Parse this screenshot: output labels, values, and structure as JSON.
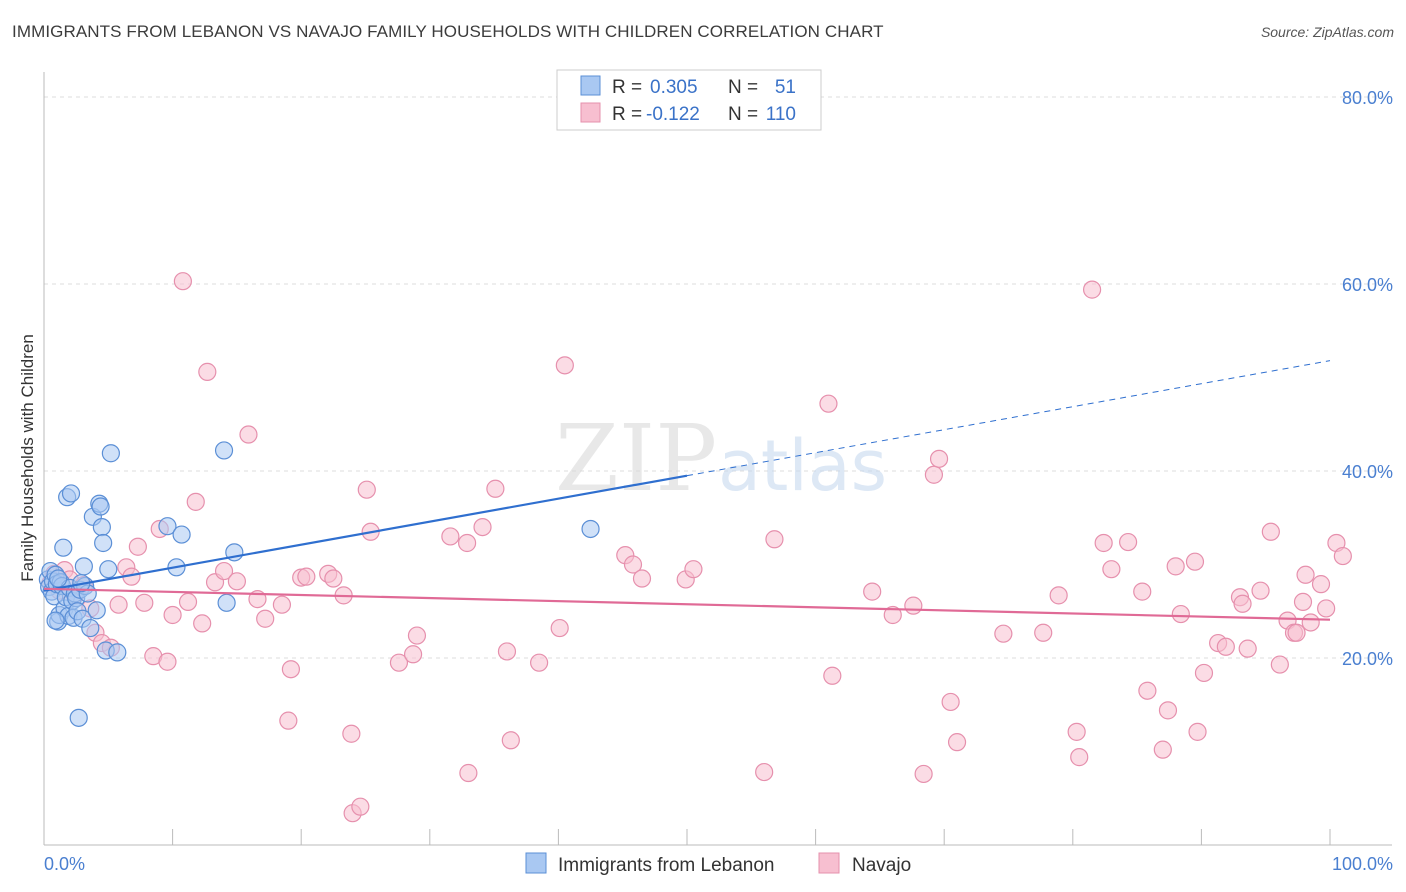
{
  "title": "IMMIGRANTS FROM LEBANON VS NAVAJO FAMILY HOUSEHOLDS WITH CHILDREN CORRELATION CHART",
  "source": "Source: ZipAtlas.com",
  "watermark": {
    "zip": "ZIP",
    "atlas": "atlas"
  },
  "colors": {
    "blue_fill": "#a9c8f2",
    "blue_stroke": "#5b8fd6",
    "blue_line": "#2f6fcf",
    "pink_fill": "#f7bfd0",
    "pink_stroke": "#e690ad",
    "pink_line": "#e06a96",
    "grid": "#dddddd",
    "axis_label": "#4a7fd0"
  },
  "legend": {
    "rows": [
      {
        "r_label": "R =",
        "r_value": "0.305",
        "n_label": "N =",
        "n_value": "51",
        "series": "blue"
      },
      {
        "r_label": "R =",
        "r_value": "-0.122",
        "n_label": "N =",
        "n_value": "110",
        "series": "pink"
      }
    ]
  },
  "chart_data": {
    "type": "scatter",
    "title": "IMMIGRANTS FROM LEBANON VS NAVAJO FAMILY HOUSEHOLDS WITH CHILDREN CORRELATION CHART",
    "xlabel": "",
    "ylabel": "Family Households with Children",
    "xlim": [
      0,
      100
    ],
    "ylim": [
      0,
      80
    ],
    "x_tick_labels": [
      "0.0%",
      "100.0%"
    ],
    "y_ticks": [
      20,
      40,
      60,
      80
    ],
    "y_tick_labels": [
      "20.0%",
      "40.0%",
      "60.0%",
      "80.0%"
    ],
    "grid": true,
    "legend_position": "bottom-center",
    "series": [
      {
        "name": "Immigrants from Lebanon",
        "color": "#a9c8f2",
        "trend": {
          "x0": 0,
          "y0": 27.2,
          "x1": 50,
          "y1": 39.5,
          "dashed_to_x": 100,
          "dashed_to_y": 51.8
        },
        "points": [
          [
            0.3,
            28.4
          ],
          [
            0.4,
            27.6
          ],
          [
            0.5,
            29.3
          ],
          [
            0.6,
            27.1
          ],
          [
            0.7,
            28.2
          ],
          [
            0.8,
            26.6
          ],
          [
            0.9,
            28.9
          ],
          [
            1.0,
            27.9
          ],
          [
            1.1,
            23.9
          ],
          [
            1.2,
            24.6
          ],
          [
            1.3,
            28.1
          ],
          [
            1.4,
            27.7
          ],
          [
            1.5,
            31.8
          ],
          [
            1.6,
            25.3
          ],
          [
            1.7,
            26.5
          ],
          [
            1.8,
            37.2
          ],
          [
            1.9,
            24.5
          ],
          [
            2.0,
            27.5
          ],
          [
            2.1,
            37.6
          ],
          [
            2.2,
            26.1
          ],
          [
            2.3,
            24.3
          ],
          [
            2.4,
            26.9
          ],
          [
            2.5,
            26.4
          ],
          [
            2.6,
            25.0
          ],
          [
            2.7,
            13.6
          ],
          [
            2.8,
            27.3
          ],
          [
            3.0,
            24.2
          ],
          [
            3.2,
            27.7
          ],
          [
            3.4,
            26.9
          ],
          [
            3.6,
            23.2
          ],
          [
            3.8,
            35.1
          ],
          [
            4.1,
            25.1
          ],
          [
            4.3,
            36.5
          ],
          [
            4.4,
            36.2
          ],
          [
            4.5,
            34.0
          ],
          [
            4.6,
            32.3
          ],
          [
            4.8,
            20.8
          ],
          [
            5.0,
            29.5
          ],
          [
            5.2,
            41.9
          ],
          [
            5.7,
            20.6
          ],
          [
            9.6,
            34.1
          ],
          [
            10.3,
            29.7
          ],
          [
            10.7,
            33.2
          ],
          [
            14.0,
            42.2
          ],
          [
            14.8,
            31.3
          ],
          [
            14.2,
            25.9
          ],
          [
            42.5,
            33.8
          ],
          [
            0.9,
            24.0
          ],
          [
            1.1,
            28.5
          ],
          [
            2.9,
            28.0
          ],
          [
            3.1,
            29.8
          ]
        ]
      },
      {
        "name": "Navajo",
        "color": "#f7bfd0",
        "trend": {
          "x0": 0,
          "y0": 27.4,
          "x1": 100,
          "y1": 24.1
        },
        "points": [
          [
            0.5,
            28.0
          ],
          [
            0.8,
            29.0
          ],
          [
            1.2,
            27.2
          ],
          [
            1.6,
            29.4
          ],
          [
            2.0,
            28.4
          ],
          [
            2.4,
            26.7
          ],
          [
            3.1,
            27.8
          ],
          [
            3.6,
            25.3
          ],
          [
            4.0,
            22.7
          ],
          [
            4.5,
            21.6
          ],
          [
            5.2,
            21.1
          ],
          [
            5.8,
            25.7
          ],
          [
            6.4,
            29.7
          ],
          [
            6.8,
            28.7
          ],
          [
            7.3,
            31.9
          ],
          [
            7.8,
            25.9
          ],
          [
            8.5,
            20.2
          ],
          [
            9.0,
            33.8
          ],
          [
            9.6,
            19.6
          ],
          [
            10.0,
            24.6
          ],
          [
            10.8,
            60.3
          ],
          [
            11.2,
            26.0
          ],
          [
            11.8,
            36.7
          ],
          [
            12.3,
            23.7
          ],
          [
            12.7,
            50.6
          ],
          [
            13.3,
            28.1
          ],
          [
            14.0,
            29.3
          ],
          [
            15.0,
            28.2
          ],
          [
            15.9,
            43.9
          ],
          [
            16.6,
            26.3
          ],
          [
            17.2,
            24.2
          ],
          [
            18.5,
            25.7
          ],
          [
            19.2,
            18.8
          ],
          [
            19.0,
            13.3
          ],
          [
            20.0,
            28.6
          ],
          [
            20.4,
            28.7
          ],
          [
            22.1,
            29.0
          ],
          [
            22.5,
            28.5
          ],
          [
            23.3,
            26.7
          ],
          [
            23.9,
            11.9
          ],
          [
            24.0,
            3.4
          ],
          [
            24.6,
            4.1
          ],
          [
            25.4,
            33.5
          ],
          [
            25.1,
            38.0
          ],
          [
            27.6,
            19.5
          ],
          [
            28.7,
            20.4
          ],
          [
            29.0,
            22.4
          ],
          [
            31.6,
            33.0
          ],
          [
            32.9,
            32.3
          ],
          [
            33.0,
            7.7
          ],
          [
            34.1,
            34.0
          ],
          [
            35.1,
            38.1
          ],
          [
            36.0,
            20.7
          ],
          [
            36.3,
            11.2
          ],
          [
            38.5,
            19.5
          ],
          [
            40.1,
            23.2
          ],
          [
            40.5,
            51.3
          ],
          [
            45.2,
            31.0
          ],
          [
            45.8,
            30.0
          ],
          [
            46.5,
            28.5
          ],
          [
            49.9,
            28.4
          ],
          [
            50.5,
            29.5
          ],
          [
            56.0,
            7.8
          ],
          [
            56.8,
            32.7
          ],
          [
            61.0,
            47.2
          ],
          [
            61.3,
            18.1
          ],
          [
            64.4,
            27.1
          ],
          [
            66.0,
            24.6
          ],
          [
            67.6,
            25.6
          ],
          [
            68.4,
            7.6
          ],
          [
            69.2,
            39.6
          ],
          [
            69.6,
            41.3
          ],
          [
            70.5,
            15.3
          ],
          [
            71.0,
            11.0
          ],
          [
            74.6,
            22.6
          ],
          [
            77.7,
            22.7
          ],
          [
            78.9,
            26.7
          ],
          [
            80.3,
            12.1
          ],
          [
            80.5,
            9.4
          ],
          [
            81.5,
            59.4
          ],
          [
            82.4,
            32.3
          ],
          [
            83.0,
            29.5
          ],
          [
            84.3,
            32.4
          ],
          [
            85.4,
            27.1
          ],
          [
            85.8,
            16.5
          ],
          [
            87.0,
            10.2
          ],
          [
            87.4,
            14.4
          ],
          [
            88.0,
            29.8
          ],
          [
            88.4,
            24.7
          ],
          [
            89.5,
            30.3
          ],
          [
            89.7,
            12.1
          ],
          [
            90.2,
            18.4
          ],
          [
            91.3,
            21.6
          ],
          [
            91.9,
            21.2
          ],
          [
            93.0,
            26.5
          ],
          [
            93.2,
            25.8
          ],
          [
            93.6,
            21.0
          ],
          [
            94.6,
            27.2
          ],
          [
            95.4,
            33.5
          ],
          [
            96.1,
            19.3
          ],
          [
            96.7,
            24.0
          ],
          [
            97.2,
            22.7
          ],
          [
            97.9,
            26.0
          ],
          [
            98.1,
            28.9
          ],
          [
            98.5,
            23.8
          ],
          [
            99.3,
            27.9
          ],
          [
            99.7,
            25.3
          ],
          [
            100.5,
            32.3
          ],
          [
            101.0,
            30.9
          ],
          [
            97.4,
            22.7
          ]
        ]
      }
    ]
  }
}
